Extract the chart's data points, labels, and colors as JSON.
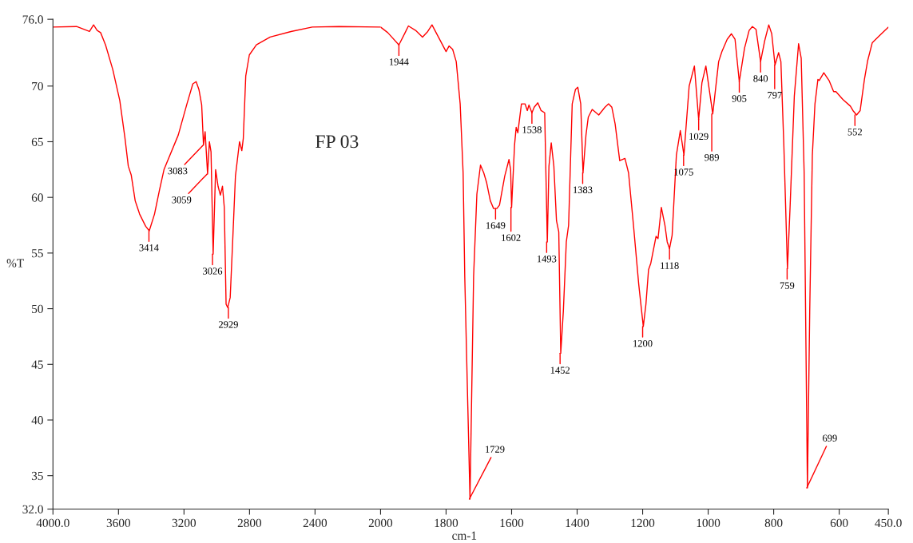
{
  "chart_data": [
    {
      "type": "line",
      "ylabel": "%T",
      "xlim": [
        4000,
        2000
      ],
      "ylim": [
        32,
        76
      ],
      "xticks": [
        {
          "value": 4000,
          "label": "4000.0"
        },
        3600,
        3200,
        2800,
        2400,
        2000
      ],
      "yticks": [
        {
          "value": 32,
          "label": "32.0"
        },
        35,
        40,
        45,
        50,
        55,
        60,
        65,
        70,
        {
          "value": 76,
          "label": "76.0"
        }
      ],
      "grid": false,
      "legend": false,
      "marker": "none",
      "line_style": "solid",
      "series": [
        {
          "color": "#ff0000",
          "x": [
            4000,
            3856,
            3777,
            3752,
            3730,
            3709,
            3679,
            3635,
            3592,
            3561,
            3540,
            3522,
            3498,
            3471,
            3434,
            3412,
            3380,
            3349,
            3322,
            3235,
            3182,
            3146,
            3126,
            3109,
            3092,
            3081,
            3071,
            3056,
            3045,
            3035,
            3022,
            3007,
            2992,
            2978,
            2965,
            2954,
            2943,
            2933,
            2918,
            2903,
            2886,
            2861,
            2847,
            2838,
            2823,
            2801,
            2758,
            2674,
            2547,
            2417,
            2253,
            2010,
            2000
          ],
          "values": [
            75.3,
            75.35,
            74.9,
            75.5,
            75.0,
            74.8,
            73.7,
            71.5,
            68.7,
            65.4,
            62.8,
            62.0,
            59.7,
            58.5,
            57.4,
            57.0,
            58.5,
            60.7,
            62.5,
            65.6,
            68.4,
            70.2,
            70.4,
            69.7,
            68.3,
            64.7,
            65.9,
            62.1,
            65.0,
            64.1,
            54.9,
            62.5,
            61.0,
            60.2,
            61.0,
            59.1,
            50.4,
            50.1,
            51.0,
            56.0,
            61.9,
            65.0,
            64.2,
            65.3,
            70.9,
            72.8,
            73.7,
            74.4,
            74.9,
            75.3,
            75.35,
            75.3,
            75.3
          ]
        }
      ],
      "annotations": [
        "FP 03",
        {
          "text": "3414",
          "x": 3414,
          "y": 57.0
        },
        {
          "text": "3083",
          "x": 3083,
          "y": 64.7
        },
        {
          "text": "3059",
          "x": 3059,
          "y": 62.1
        },
        {
          "text": "3026",
          "x": 3026,
          "y": 54.9
        },
        {
          "text": "2929",
          "x": 2929,
          "y": 50.1
        }
      ]
    },
    {
      "type": "line",
      "xlabel": "cm-1",
      "tick_labels": "x",
      "xlim": [
        2000,
        450
      ],
      "ylim": [
        32,
        76
      ],
      "xticks": [
        1800,
        1600,
        1400,
        1200,
        1000,
        800,
        600,
        {
          "value": 450,
          "label": "450.0"
        }
      ],
      "grid": false,
      "legend": false,
      "marker": "none",
      "line_style": "solid",
      "series": [
        {
          "color": "#ff0000",
          "x": [
            2000,
            1978,
            1944,
            1925,
            1915,
            1893,
            1872,
            1856,
            1843,
            1825,
            1800,
            1791,
            1780,
            1769,
            1757,
            1748,
            1743,
            1727,
            1716,
            1706,
            1695,
            1685,
            1676,
            1665,
            1655,
            1645,
            1637,
            1621,
            1608,
            1603,
            1600,
            1591,
            1586,
            1581,
            1570,
            1559,
            1552,
            1547,
            1538,
            1531,
            1520,
            1510,
            1499,
            1491,
            1486,
            1479,
            1471,
            1463,
            1456,
            1450,
            1442,
            1433,
            1426,
            1415,
            1405,
            1398,
            1389,
            1382,
            1373,
            1366,
            1354,
            1334,
            1315,
            1304,
            1294,
            1284,
            1270,
            1254,
            1243,
            1228,
            1212,
            1198,
            1190,
            1182,
            1175,
            1159,
            1153,
            1143,
            1132,
            1125,
            1118,
            1110,
            1097,
            1085,
            1074,
            1058,
            1042,
            1029,
            1019,
            1007,
            986,
            968,
            958,
            942,
            929,
            918,
            905,
            889,
            875,
            865,
            854,
            840,
            828,
            815,
            806,
            796,
            785,
            778,
            769,
            758,
            750,
            737,
            724,
            716,
            707,
            697,
            690,
            682,
            674,
            665,
            661,
            647,
            631,
            617,
            610,
            589,
            566,
            558,
            547,
            536,
            523,
            513,
            499,
            478,
            450
          ],
          "values": [
            75.3,
            74.8,
            73.7,
            74.8,
            75.4,
            75.0,
            74.4,
            74.9,
            75.5,
            74.5,
            73.1,
            73.6,
            73.3,
            72.2,
            68.4,
            62.2,
            52.9,
            32.9,
            52.9,
            60.3,
            62.9,
            62.2,
            61.3,
            59.7,
            59.0,
            59.0,
            59.3,
            61.9,
            63.4,
            62.5,
            59.1,
            64.7,
            66.3,
            65.8,
            68.4,
            68.4,
            67.8,
            68.3,
            67.6,
            68.1,
            68.5,
            67.8,
            67.6,
            56.0,
            62.8,
            64.9,
            62.8,
            57.9,
            56.9,
            46.0,
            49.8,
            56.0,
            57.5,
            68.4,
            69.7,
            69.9,
            68.4,
            62.2,
            65.6,
            67.2,
            67.9,
            67.4,
            68.1,
            68.4,
            68.1,
            66.6,
            63.3,
            63.5,
            62.2,
            57.5,
            52.2,
            48.4,
            50.4,
            53.5,
            54.1,
            56.5,
            56.3,
            59.1,
            57.5,
            56.0,
            55.4,
            56.6,
            63.8,
            66.0,
            63.8,
            70.0,
            71.8,
            67.0,
            70.3,
            71.8,
            67.5,
            72.2,
            73.1,
            74.2,
            74.7,
            74.2,
            70.4,
            73.4,
            75.0,
            75.35,
            75.1,
            72.2,
            74.0,
            75.5,
            74.7,
            71.9,
            73.0,
            72.2,
            64.7,
            53.6,
            59.1,
            69.1,
            73.8,
            72.5,
            62.2,
            33.9,
            49.8,
            63.8,
            68.4,
            70.6,
            70.5,
            71.2,
            70.5,
            69.5,
            69.5,
            68.8,
            68.2,
            67.8,
            67.4,
            67.8,
            70.6,
            72.3,
            73.9,
            74.5,
            75.3
          ]
        }
      ],
      "annotations": [
        {
          "text": "1944",
          "x": 1944,
          "y": 73.7
        },
        {
          "text": "1729",
          "x": 1729,
          "y": 32.9
        },
        {
          "text": "1649",
          "x": 1649,
          "y": 59.0
        },
        {
          "text": "1602",
          "x": 1602,
          "y": 59.1
        },
        {
          "text": "1538",
          "x": 1538,
          "y": 67.6
        },
        {
          "text": "1493",
          "x": 1493,
          "y": 56.0
        },
        {
          "text": "1452",
          "x": 1452,
          "y": 46.0
        },
        {
          "text": "1383",
          "x": 1383,
          "y": 62.2
        },
        {
          "text": "1200",
          "x": 1200,
          "y": 48.4
        },
        {
          "text": "1118",
          "x": 1118,
          "y": 55.4
        },
        {
          "text": "1075",
          "x": 1075,
          "y": 63.8
        },
        {
          "text": "1029",
          "x": 1029,
          "y": 67.0
        },
        {
          "text": "989",
          "x": 989,
          "y": 67.5
        },
        {
          "text": "905",
          "x": 905,
          "y": 70.4
        },
        {
          "text": "840",
          "x": 840,
          "y": 72.2
        },
        {
          "text": "797",
          "x": 797,
          "y": 71.9
        },
        {
          "text": "759",
          "x": 759,
          "y": 53.6
        },
        {
          "text": "699",
          "x": 699,
          "y": 33.9
        },
        {
          "text": "552",
          "x": 552,
          "y": 67.4
        }
      ]
    }
  ]
}
